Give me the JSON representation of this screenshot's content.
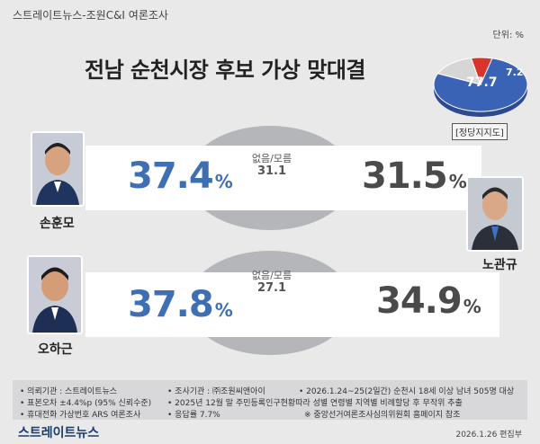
{
  "header": {
    "source": "스트레이트뉴스-조원C&I 여론조사",
    "unit": "단위: %",
    "title": "전남 순천시장 후보 가상 맞대결"
  },
  "party_support": {
    "label": "[정당지지도]",
    "slices": [
      {
        "value": 77.7,
        "label": "77.7",
        "color": "#3a63b5"
      },
      {
        "value": 7.2,
        "label": "7.2",
        "color": "#d9342b"
      },
      {
        "value": 15.1,
        "label": "",
        "color": "#d6d6d6"
      }
    ]
  },
  "chart_data": [
    {
      "type": "bar",
      "title": "",
      "series": [
        {
          "name": "손훈모",
          "value": 37.4,
          "color": "#3e6fb3"
        },
        {
          "name": "노관규",
          "value": 31.5,
          "color": "#4a4a4a"
        }
      ],
      "undecided": {
        "label": "없음/모름",
        "value": 31.1
      }
    },
    {
      "type": "bar",
      "title": "",
      "series": [
        {
          "name": "오하근",
          "value": 37.8,
          "color": "#3e6fb3"
        },
        {
          "name": "노관규",
          "value": 34.9,
          "color": "#4a4a4a"
        }
      ],
      "undecided": {
        "label": "없음/모름",
        "value": 27.1
      }
    }
  ],
  "matchups": [
    {
      "left_name": "손훈모",
      "left_pct": "37.4",
      "right_name": "노관규",
      "right_pct": "31.5",
      "und_label": "없음/모름",
      "und_value": "31.1"
    },
    {
      "left_name": "오하근",
      "left_pct": "37.8",
      "right_name": "노관규",
      "right_pct": "34.9",
      "und_label": "없음/모름",
      "und_value": "27.1"
    }
  ],
  "percent_sign": "%",
  "footnotes": {
    "c1": [
      "• 의뢰기관 : 스트레이트뉴스",
      "• 표본오차 ±4.4%p (95% 신뢰수준)",
      "• 휴대전화 가상번호 ARS 여론조사"
    ],
    "c2": [
      "• 조사기관 : ㈜조원씨앤아이",
      "• 2025년 12월 말 주민등록인구현황따라 성별 연령별 지역별 비례할당 후 무작위 추출",
      "• 응답률 7.7%"
    ],
    "c3": [
      "• 2026.1.24~25(2일간) 순천시 18세 이상 남녀 505명 대상",
      "",
      "※ 중앙선거여론조사심의위원회 홈페이지 참조"
    ]
  },
  "brand": "스트레이트뉴스",
  "date": "2026.1.26  편집부"
}
